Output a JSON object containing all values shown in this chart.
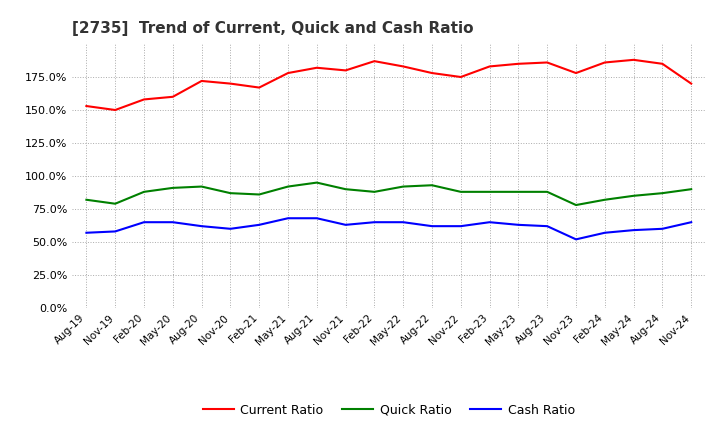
{
  "title": "[2735]  Trend of Current, Quick and Cash Ratio",
  "x_labels": [
    "Aug-19",
    "Nov-19",
    "Feb-20",
    "May-20",
    "Aug-20",
    "Nov-20",
    "Feb-21",
    "May-21",
    "Aug-21",
    "Nov-21",
    "Feb-22",
    "May-22",
    "Aug-22",
    "Nov-22",
    "Feb-23",
    "May-23",
    "Aug-23",
    "Nov-23",
    "Feb-24",
    "May-24",
    "Aug-24",
    "Nov-24"
  ],
  "current_ratio": [
    153,
    150,
    158,
    160,
    172,
    170,
    167,
    178,
    182,
    180,
    187,
    183,
    178,
    175,
    183,
    185,
    186,
    178,
    186,
    188,
    185,
    170
  ],
  "quick_ratio": [
    82,
    79,
    88,
    91,
    92,
    87,
    86,
    92,
    95,
    90,
    88,
    92,
    93,
    88,
    88,
    88,
    88,
    78,
    82,
    85,
    87,
    90
  ],
  "cash_ratio": [
    57,
    58,
    65,
    65,
    62,
    60,
    63,
    68,
    68,
    63,
    65,
    65,
    62,
    62,
    65,
    63,
    62,
    52,
    57,
    59,
    60,
    65
  ],
  "current_color": "#ff0000",
  "quick_color": "#008000",
  "cash_color": "#0000ff",
  "bg_color": "#ffffff",
  "plot_bg_color": "#ffffff",
  "grid_color": "#aaaaaa",
  "ylim": [
    0,
    200
  ],
  "yticks": [
    0,
    25,
    50,
    75,
    100,
    125,
    150,
    175
  ],
  "legend_labels": [
    "Current Ratio",
    "Quick Ratio",
    "Cash Ratio"
  ],
  "line_width": 1.5,
  "title_fontsize": 11
}
